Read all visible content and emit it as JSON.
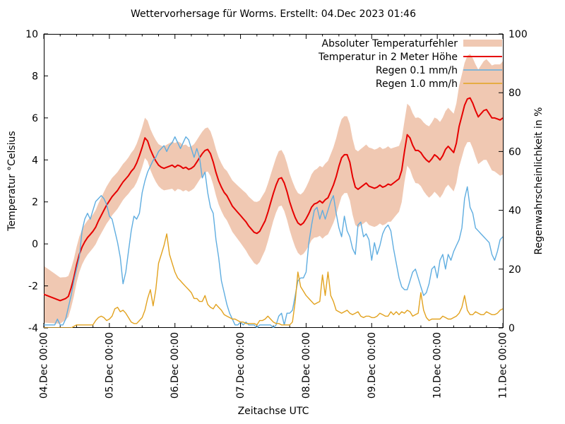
{
  "title": "Wettervorhersage für Worms. Erstellt: 04.Dec 2023 01:46",
  "axes": {
    "left_label": "Temperatur °Celsius",
    "right_label": "Regenwahrscheinlichkeit in %",
    "bottom_label": "Zeitachse UTC",
    "left_ticks": [
      10,
      8,
      6,
      4,
      2,
      0,
      -2,
      -4
    ],
    "right_ticks": [
      100,
      80,
      60,
      40,
      20,
      0
    ],
    "x_tick_labels": [
      "04.Dec 00:00",
      "05.Dec 00:00",
      "06.Dec 00:00",
      "07.Dec 00:00",
      "08.Dec 00:00",
      "09.Dec 00:00",
      "10.Dec 00:00",
      "11.Dec 00:00"
    ]
  },
  "legend": [
    {
      "label": "Absoluter Temperaturfehler",
      "type": "band",
      "color": "#f0c8b2"
    },
    {
      "label": "Temperatur in 2 Meter Höhe",
      "type": "line",
      "color": "#e60000"
    },
    {
      "label": "Regen 0.1 mm/h",
      "type": "line",
      "color": "#5fade0"
    },
    {
      "label": "Regen 1.0 mm/h",
      "type": "line",
      "color": "#e2a21f"
    }
  ],
  "chart_data": {
    "type": "line",
    "title": "Wettervorhersage für Worms. Erstellt: 04.Dec 2023 01:46",
    "xlabel": "Zeitachse UTC",
    "ylabel_left": "Temperatur °Celsius",
    "ylabel_right": "Regenwahrscheinlichkeit in %",
    "ylim_left": [
      -4,
      10
    ],
    "ylim_right": [
      0,
      100
    ],
    "x_range_days": [
      "04.Dec 00:00",
      "11.Dec 00:00"
    ],
    "x_step_hours": 1,
    "x_minor_tick_hours": 6,
    "grid": false,
    "legend_position": "top-right",
    "series": [
      {
        "name": "Temperatur in 2 Meter Höhe",
        "axis": "left",
        "unit": "°C",
        "color": "#e60000",
        "values": [
          -2.4,
          -2.45,
          -2.5,
          -2.55,
          -2.6,
          -2.65,
          -2.7,
          -2.65,
          -2.6,
          -2.5,
          -2.1,
          -1.6,
          -1.0,
          -0.5,
          -0.15,
          0.1,
          0.3,
          0.45,
          0.6,
          0.8,
          1.1,
          1.35,
          1.6,
          1.85,
          2.05,
          2.25,
          2.4,
          2.55,
          2.75,
          2.95,
          3.1,
          3.25,
          3.45,
          3.6,
          3.85,
          4.2,
          4.6,
          5.05,
          4.9,
          4.5,
          4.2,
          3.95,
          3.75,
          3.65,
          3.6,
          3.65,
          3.7,
          3.75,
          3.65,
          3.75,
          3.7,
          3.6,
          3.65,
          3.55,
          3.6,
          3.7,
          3.9,
          4.1,
          4.3,
          4.45,
          4.5,
          4.3,
          3.9,
          3.4,
          3.0,
          2.7,
          2.45,
          2.3,
          2.05,
          1.8,
          1.65,
          1.5,
          1.35,
          1.2,
          1.05,
          0.85,
          0.7,
          0.55,
          0.5,
          0.6,
          0.85,
          1.1,
          1.5,
          1.95,
          2.4,
          2.8,
          3.1,
          3.15,
          2.9,
          2.5,
          2.0,
          1.6,
          1.25,
          1.0,
          0.9,
          1.0,
          1.2,
          1.45,
          1.75,
          1.9,
          1.95,
          2.05,
          1.95,
          2.1,
          2.2,
          2.5,
          2.8,
          3.2,
          3.7,
          4.1,
          4.25,
          4.25,
          3.9,
          3.2,
          2.7,
          2.6,
          2.7,
          2.8,
          2.9,
          2.75,
          2.7,
          2.65,
          2.7,
          2.8,
          2.7,
          2.75,
          2.85,
          2.8,
          2.9,
          3.0,
          3.1,
          3.5,
          4.4,
          5.2,
          5.05,
          4.7,
          4.45,
          4.45,
          4.35,
          4.15,
          4.0,
          3.9,
          4.05,
          4.25,
          4.15,
          4.0,
          4.2,
          4.5,
          4.65,
          4.5,
          4.35,
          4.8,
          5.6,
          6.1,
          6.6,
          6.9,
          6.95,
          6.7,
          6.35,
          6.05,
          6.2,
          6.35,
          6.4,
          6.2,
          6.0,
          6.0,
          5.95,
          5.9,
          6.0
        ]
      },
      {
        "name": "Regen 0.1 mm/h",
        "axis": "right",
        "unit": "%",
        "color": "#5fade0",
        "values": [
          1,
          1,
          1,
          1,
          1,
          3,
          1,
          1,
          3,
          7,
          11,
          16,
          20,
          24,
          33,
          37,
          39,
          37,
          40,
          43,
          44,
          45,
          44,
          42,
          38,
          37,
          33,
          29,
          24,
          15,
          19,
          26,
          33,
          38,
          37,
          39,
          46,
          50,
          53,
          55,
          57,
          58,
          60,
          61,
          62,
          60,
          62,
          63,
          65,
          63,
          61,
          63,
          65,
          64,
          61,
          58,
          61,
          58,
          51,
          53,
          46,
          41,
          39,
          30,
          24,
          16,
          12,
          8,
          5,
          3,
          1,
          1,
          2,
          1,
          2,
          1,
          1,
          1,
          0,
          1,
          1,
          1,
          1,
          1,
          0,
          1,
          4,
          5,
          1,
          5,
          5,
          6,
          11,
          16,
          17,
          17,
          19,
          29,
          35,
          40,
          41,
          37,
          40,
          37,
          40,
          43,
          45,
          39,
          34,
          31,
          38,
          33,
          31,
          27,
          25,
          35,
          36,
          31,
          32,
          30,
          23,
          29,
          25,
          28,
          32,
          34,
          35,
          33,
          27,
          22,
          17,
          14,
          13,
          13,
          16,
          19,
          20,
          17,
          14,
          11,
          12,
          15,
          20,
          21,
          17,
          23,
          25,
          20,
          25,
          23,
          26,
          28,
          30,
          34,
          44,
          48,
          41,
          39,
          34,
          33,
          32,
          31,
          30,
          29,
          25,
          23,
          26,
          30,
          31
        ]
      },
      {
        "name": "Regen 1.0 mm/h",
        "axis": "right",
        "unit": "%",
        "color": "#e2a21f",
        "values": [
          0,
          0,
          0,
          0,
          0,
          0,
          0,
          0,
          0,
          0,
          0,
          0.5,
          1,
          1,
          1,
          1,
          1,
          1,
          1,
          2.5,
          3.5,
          4,
          3.5,
          2.5,
          3,
          4,
          6.5,
          7,
          5.5,
          6,
          5,
          3.5,
          2,
          1.5,
          1.5,
          2.5,
          3.5,
          6,
          10,
          13,
          7.5,
          13,
          22,
          25,
          28,
          32,
          25,
          22,
          19,
          17,
          16,
          15,
          14,
          13,
          12,
          10,
          10,
          9,
          9,
          11,
          8,
          7,
          6.5,
          8,
          7,
          6,
          4.5,
          4,
          3.5,
          3,
          3,
          2.5,
          2,
          2,
          1.5,
          1.5,
          1.5,
          1.5,
          1,
          2.5,
          2.5,
          3,
          4,
          3,
          2,
          1.5,
          1.5,
          1,
          1,
          1,
          1,
          2,
          9,
          19,
          14,
          12.5,
          11,
          10,
          9,
          8,
          8.5,
          9,
          18,
          11,
          19,
          11,
          9,
          6,
          5.5,
          5,
          5.5,
          6,
          5,
          4.5,
          5,
          5.5,
          4,
          3.5,
          4,
          4,
          3.5,
          3.5,
          4,
          5,
          4.5,
          4,
          4,
          5.5,
          4.5,
          5.5,
          4.5,
          5.5,
          5,
          6,
          5.5,
          4,
          4.5,
          5,
          12,
          6,
          3.5,
          2.5,
          3,
          3,
          3,
          3,
          4,
          3.5,
          3,
          3,
          3.5,
          4,
          5,
          7,
          11,
          6,
          4.5,
          4.5,
          5.5,
          5,
          4.5,
          4.5,
          5.5,
          5,
          4.5,
          4.5,
          5,
          6,
          6.5
        ]
      }
    ],
    "error_band": {
      "name": "Absoluter Temperaturfehler",
      "axis": "left",
      "unit": "°C",
      "color": "#f0c8b2",
      "around_series": "Temperatur in 2 Meter Höhe",
      "halfwidth_step_hours": 6,
      "halfwidth": [
        1.35,
        1.1,
        0.85,
        0.8,
        0.9,
        0.85,
        0.95,
        1.0,
        1.15,
        1.05,
        1.05,
        1.15,
        1.3,
        1.5,
        1.3,
        1.35,
        1.5,
        1.7,
        1.85,
        1.8,
        1.85,
        1.8,
        1.45,
        1.6,
        1.8,
        1.85,
        2.1,
        2.4,
        2.7
      ]
    }
  }
}
